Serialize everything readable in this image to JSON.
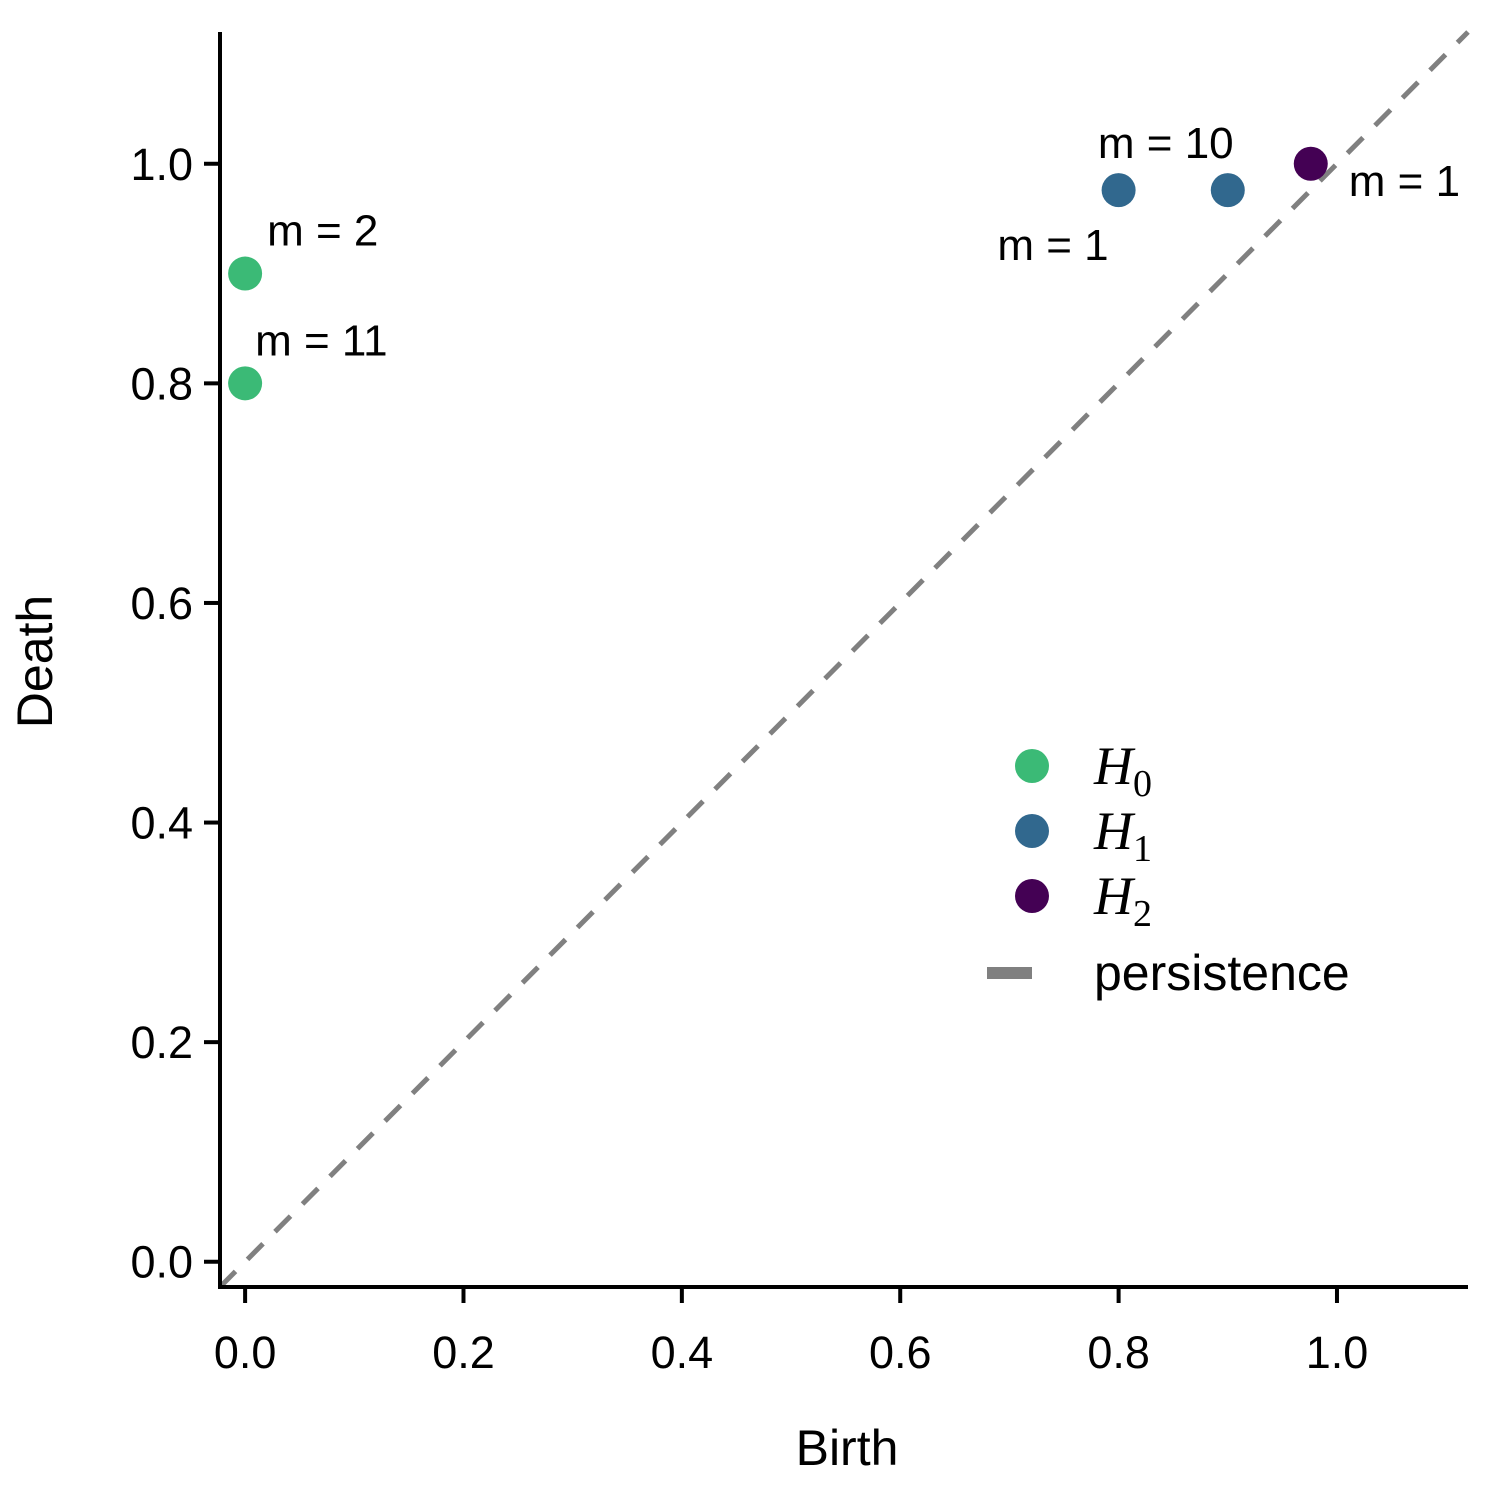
{
  "chart_data": {
    "type": "scatter",
    "xlabel": "Birth",
    "ylabel": "Death",
    "xlim": [
      -0.023,
      1.12
    ],
    "ylim": [
      -0.023,
      1.12
    ],
    "xticks": [
      "0.0",
      "0.2",
      "0.4",
      "0.6",
      "0.8",
      "1.0"
    ],
    "yticks": [
      "0.0",
      "0.2",
      "0.4",
      "0.6",
      "0.8",
      "1.0"
    ],
    "grid": false,
    "legend_position": "center-right",
    "diagonal": {
      "label": "persistence",
      "color": "#808080",
      "style": "dashed"
    },
    "series": [
      {
        "name": "H",
        "subscript": "0",
        "color": "#3bba76",
        "points": [
          {
            "x": 0.0,
            "y": 0.9,
            "label": "m = 2"
          },
          {
            "x": 0.0,
            "y": 0.8,
            "label": "m = 11"
          }
        ]
      },
      {
        "name": "H",
        "subscript": "1",
        "color": "#31688e",
        "points": [
          {
            "x": 0.8,
            "y": 0.976,
            "label": "m = 1"
          },
          {
            "x": 0.9,
            "y": 0.976,
            "label": "m = 10"
          }
        ]
      },
      {
        "name": "H",
        "subscript": "2",
        "color": "#440154",
        "points": [
          {
            "x": 0.976,
            "y": 1.0,
            "label": "m = 1"
          }
        ]
      }
    ]
  }
}
